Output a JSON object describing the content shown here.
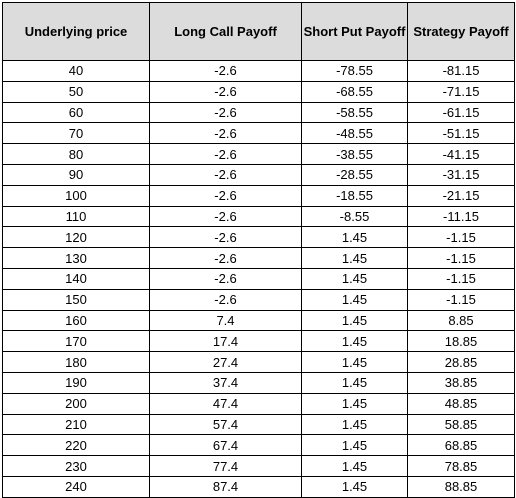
{
  "headers": [
    "Underlying price",
    "Long Call Payoff",
    "Short Put Payoff",
    "Strategy Payoff"
  ],
  "rows": [
    [
      "40",
      "-2.6",
      "-78.55",
      "-81.15"
    ],
    [
      "50",
      "-2.6",
      "-68.55",
      "-71.15"
    ],
    [
      "60",
      "-2.6",
      "-58.55",
      "-61.15"
    ],
    [
      "70",
      "-2.6",
      "-48.55",
      "-51.15"
    ],
    [
      "80",
      "-2.6",
      "-38.55",
      "-41.15"
    ],
    [
      "90",
      "-2.6",
      "-28.55",
      "-31.15"
    ],
    [
      "100",
      "-2.6",
      "-18.55",
      "-21.15"
    ],
    [
      "110",
      "-2.6",
      "-8.55",
      "-11.15"
    ],
    [
      "120",
      "-2.6",
      "1.45",
      "-1.15"
    ],
    [
      "130",
      "-2.6",
      "1.45",
      "-1.15"
    ],
    [
      "140",
      "-2.6",
      "1.45",
      "-1.15"
    ],
    [
      "150",
      "-2.6",
      "1.45",
      "-1.15"
    ],
    [
      "160",
      "7.4",
      "1.45",
      "8.85"
    ],
    [
      "170",
      "17.4",
      "1.45",
      "18.85"
    ],
    [
      "180",
      "27.4",
      "1.45",
      "28.85"
    ],
    [
      "190",
      "37.4",
      "1.45",
      "38.85"
    ],
    [
      "200",
      "47.4",
      "1.45",
      "48.85"
    ],
    [
      "210",
      "57.4",
      "1.45",
      "58.85"
    ],
    [
      "220",
      "67.4",
      "1.45",
      "68.85"
    ],
    [
      "230",
      "77.4",
      "1.45",
      "78.85"
    ],
    [
      "240",
      "87.4",
      "1.45",
      "88.85"
    ]
  ]
}
